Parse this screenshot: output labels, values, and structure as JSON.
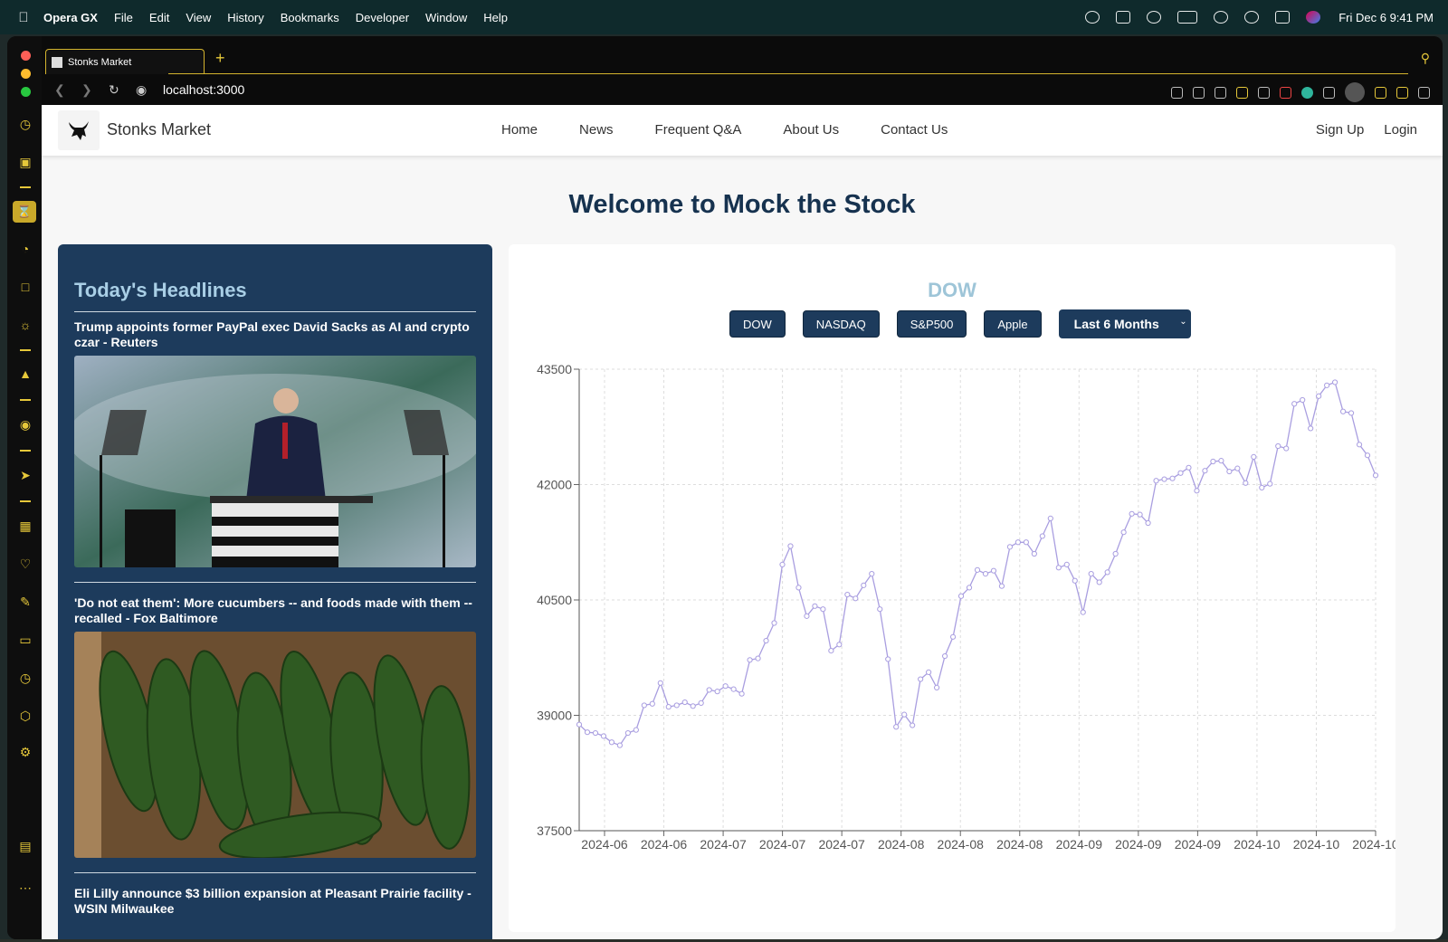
{
  "os_menubar": {
    "app_name": "Opera GX",
    "menus": [
      "File",
      "Edit",
      "View",
      "History",
      "Bookmarks",
      "Developer",
      "Window",
      "Help"
    ],
    "clock": "Fri Dec 6  9:41 PM"
  },
  "browser": {
    "tab_title": "Stonks Market",
    "url": "localhost:3000"
  },
  "site": {
    "brand": "Stonks Market",
    "nav": [
      "Home",
      "News",
      "Frequent Q&A",
      "About Us",
      "Contact Us"
    ],
    "auth": [
      "Sign Up",
      "Login"
    ],
    "welcome": "Welcome to Mock the Stock"
  },
  "headlines": {
    "title": "Today's Headlines",
    "articles": [
      {
        "title": "Trump appoints former PayPal exec David Sacks as AI and crypto czar - Reuters"
      },
      {
        "title": "'Do not eat them': More cucumbers -- and foods made with them -- recalled - Fox Baltimore"
      },
      {
        "title": "Eli Lilly announce $3 billion expansion at Pleasant Prairie facility - WSIN Milwaukee"
      }
    ]
  },
  "chart_controls": {
    "buttons": [
      "DOW",
      "NASDAQ",
      "S&P500",
      "Apple"
    ],
    "range_selected": "Last 6 Months"
  },
  "chart_data": {
    "type": "line",
    "title": "DOW",
    "xlabel": "",
    "ylabel": "",
    "ylim": [
      37500,
      43500
    ],
    "y_ticks": [
      37500,
      39000,
      40500,
      42000,
      43500
    ],
    "x_tick_labels": [
      "2024-06",
      "2024-06",
      "2024-07",
      "2024-07",
      "2024-07",
      "2024-08",
      "2024-08",
      "2024-08",
      "2024-09",
      "2024-09",
      "2024-09",
      "2024-10",
      "2024-10",
      "2024-10"
    ],
    "grid": true,
    "line_color": "#a99ee0",
    "series": [
      {
        "values": [
          38880,
          38780,
          38770,
          38730,
          38650,
          38610,
          38770,
          38810,
          39130,
          39150,
          39420,
          39110,
          39130,
          39170,
          39120,
          39160,
          39330,
          39310,
          39380,
          39340,
          39280,
          39720,
          39740,
          39970,
          40200,
          40960,
          41200,
          40660,
          40290,
          40420,
          40380,
          39840,
          39920,
          40570,
          40520,
          40690,
          40840,
          40380,
          39730,
          38850,
          39010,
          38870,
          39470,
          39560,
          39360,
          39770,
          40020,
          40550,
          40660,
          40890,
          40840,
          40880,
          40680,
          41190,
          41250,
          41250,
          41100,
          41330,
          41560,
          40920,
          40960,
          40750,
          40340,
          40840,
          40730,
          40860,
          41100,
          41380,
          41620,
          41610,
          41500,
          42050,
          42070,
          42080,
          42150,
          42220,
          41920,
          42180,
          42300,
          42310,
          42170,
          42210,
          42020,
          42360,
          41960,
          42010,
          42500,
          42470,
          43050,
          43100,
          42730,
          43150,
          43290,
          43330,
          42950,
          42930,
          42520,
          42380,
          42120
        ]
      }
    ]
  }
}
